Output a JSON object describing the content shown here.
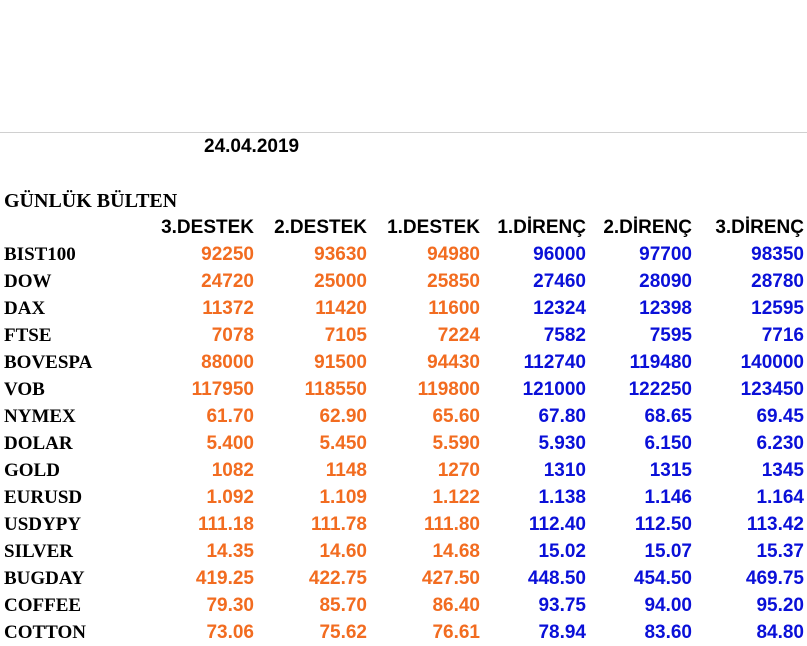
{
  "report": {
    "date": "24.04.2019",
    "title": "GÜNLÜK BÜLTEN",
    "colors": {
      "support": "#f26c20",
      "resistance": "#0a10d8"
    },
    "headers": [
      "3.DESTEK",
      "2.DESTEK",
      "1.DESTEK",
      "1.DİRENÇ",
      "2.DİRENÇ",
      "3.DİRENÇ"
    ],
    "rows": [
      {
        "name": "BIST100",
        "values": [
          "92250",
          "93630",
          "94980",
          "96000",
          "97700",
          "98350"
        ]
      },
      {
        "name": "DOW",
        "values": [
          "24720",
          "25000",
          "25850",
          "27460",
          "28090",
          "28780"
        ]
      },
      {
        "name": "DAX",
        "values": [
          "11372",
          "11420",
          "11600",
          "12324",
          "12398",
          "12595"
        ]
      },
      {
        "name": "FTSE",
        "values": [
          "7078",
          "7105",
          "7224",
          "7582",
          "7595",
          "7716"
        ]
      },
      {
        "name": "BOVESPA",
        "values": [
          "88000",
          "91500",
          "94430",
          "112740",
          "119480",
          "140000"
        ]
      },
      {
        "name": "VOB",
        "values": [
          "117950",
          "118550",
          "119800",
          "121000",
          "122250",
          "123450"
        ]
      },
      {
        "name": "NYMEX",
        "values": [
          "61.70",
          "62.90",
          "65.60",
          "67.80",
          "68.65",
          "69.45"
        ]
      },
      {
        "name": "DOLAR",
        "values": [
          "5.400",
          "5.450",
          "5.590",
          "5.930",
          "6.150",
          "6.230"
        ]
      },
      {
        "name": "GOLD",
        "values": [
          "1082",
          "1148",
          "1270",
          "1310",
          "1315",
          "1345"
        ]
      },
      {
        "name": "EURUSD",
        "values": [
          "1.092",
          "1.109",
          "1.122",
          "1.138",
          "1.146",
          "1.164"
        ]
      },
      {
        "name": "USDYPY",
        "values": [
          "111.18",
          "111.78",
          "111.80",
          "112.40",
          "112.50",
          "113.42"
        ]
      },
      {
        "name": "SILVER",
        "values": [
          "14.35",
          "14.60",
          "14.68",
          "15.02",
          "15.07",
          "15.37"
        ]
      },
      {
        "name": "BUGDAY",
        "values": [
          "419.25",
          "422.75",
          "427.50",
          "448.50",
          "454.50",
          "469.75"
        ]
      },
      {
        "name": "COFFEE",
        "values": [
          "79.30",
          "85.70",
          "86.40",
          "93.75",
          "94.00",
          "95.20"
        ]
      },
      {
        "name": "COTTON",
        "values": [
          "73.06",
          "75.62",
          "76.61",
          "78.94",
          "83.60",
          "84.80"
        ]
      }
    ]
  }
}
